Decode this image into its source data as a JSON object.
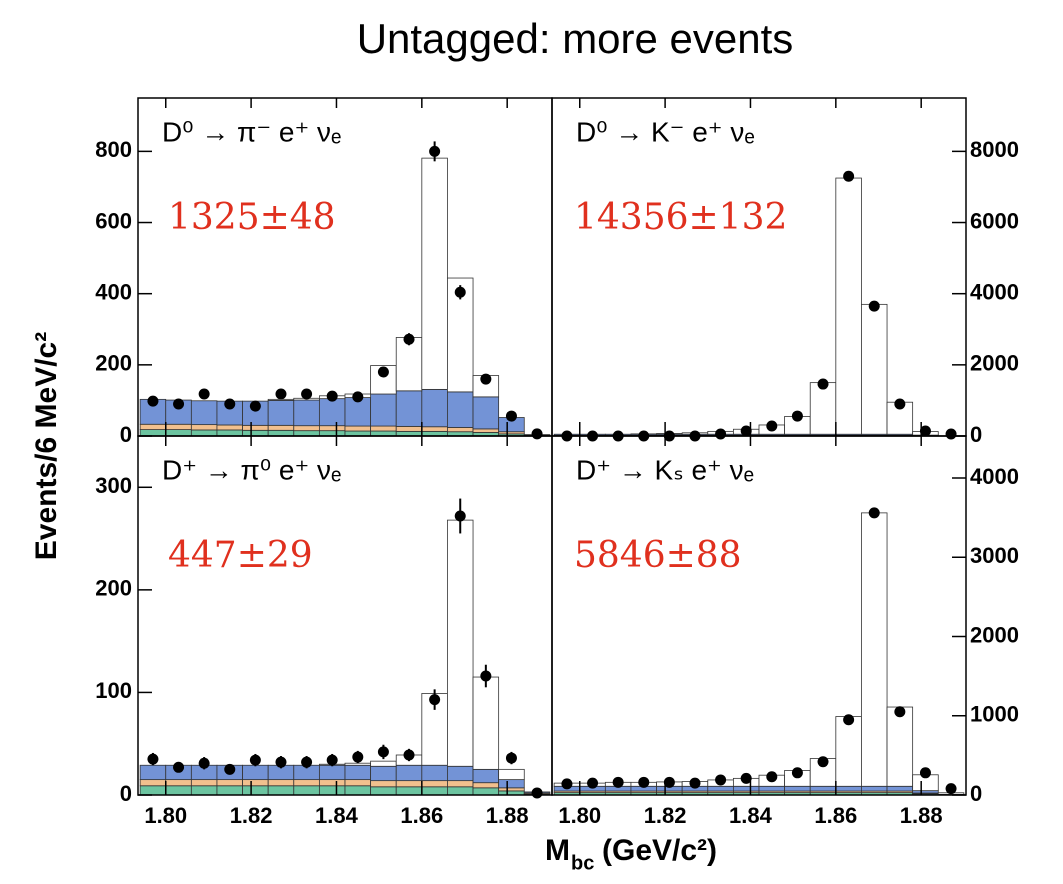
{
  "title": "Untagged: more events",
  "ylabel": "Events/6 MeV/c²",
  "xlabel": {
    "symbol": "M",
    "subscript": "bc",
    "unit": "(GeV/c²)"
  },
  "chart_data": [
    {
      "type": "histogram",
      "title": "D⁰ → π⁻ e⁺ νₑ",
      "annotation": "1325±48",
      "annotation_color": "#e0301e",
      "bins": [
        1.794,
        1.8,
        1.806,
        1.812,
        1.818,
        1.824,
        1.83,
        1.836,
        1.842,
        1.848,
        1.854,
        1.86,
        1.866,
        1.872,
        1.878,
        1.884,
        1.89
      ],
      "xlim": [
        1.7935,
        1.8905
      ],
      "xticks": [
        1.8,
        1.82,
        1.84,
        1.86,
        1.88
      ],
      "xtick_labels": false,
      "ylim": [
        0,
        950
      ],
      "yticks": [
        0,
        200,
        400,
        600,
        800
      ],
      "yaxis": "left",
      "series": [
        {
          "name": "green",
          "color": "#6cc4a0",
          "values": [
            18,
            18,
            17,
            17,
            16,
            16,
            15,
            15,
            14,
            14,
            13,
            13,
            12,
            10,
            6,
            1
          ]
        },
        {
          "name": "orange",
          "color": "#f2c08e",
          "values": [
            15,
            15,
            15,
            14,
            14,
            14,
            14,
            14,
            14,
            14,
            14,
            13,
            12,
            10,
            6,
            1
          ]
        },
        {
          "name": "blue",
          "color": "#7393d6",
          "values": [
            70,
            68,
            67,
            67,
            68,
            70,
            72,
            76,
            80,
            90,
            100,
            105,
            100,
            90,
            40,
            2
          ]
        },
        {
          "name": "signal",
          "color": "#ffffff",
          "values": [
            0,
            0,
            0,
            0,
            0,
            3,
            5,
            8,
            10,
            80,
            150,
            650,
            320,
            60,
            0,
            0
          ]
        }
      ],
      "points": {
        "color": "#000000",
        "values": [
          98,
          90,
          118,
          90,
          84,
          118,
          118,
          112,
          110,
          180,
          272,
          800,
          404,
          160,
          56,
          6
        ],
        "errors": [
          10,
          10,
          11,
          10,
          10,
          11,
          11,
          11,
          11,
          14,
          17,
          28,
          20,
          13,
          8,
          3
        ]
      }
    },
    {
      "type": "histogram",
      "title": "D⁰ → K⁻ e⁺ νₑ",
      "annotation": "14356±132",
      "annotation_color": "#e0301e",
      "bins": [
        1.794,
        1.8,
        1.806,
        1.812,
        1.818,
        1.824,
        1.83,
        1.836,
        1.842,
        1.848,
        1.854,
        1.86,
        1.866,
        1.872,
        1.878,
        1.884,
        1.89
      ],
      "xlim": [
        1.7935,
        1.8905
      ],
      "xticks": [
        1.8,
        1.82,
        1.84,
        1.86,
        1.88
      ],
      "xtick_labels": false,
      "ylim": [
        0,
        9500
      ],
      "yticks": [
        0,
        2000,
        4000,
        6000,
        8000
      ],
      "yaxis": "right",
      "series": [
        {
          "name": "green",
          "color": "#6cc4a0",
          "values": [
            10,
            10,
            10,
            10,
            10,
            10,
            10,
            10,
            10,
            10,
            10,
            10,
            10,
            10,
            5,
            1
          ]
        },
        {
          "name": "orange",
          "color": "#f2c08e",
          "values": [
            10,
            10,
            10,
            10,
            10,
            10,
            10,
            10,
            10,
            10,
            10,
            10,
            10,
            10,
            5,
            1
          ]
        },
        {
          "name": "blue",
          "color": "#7393d6",
          "values": [
            30,
            30,
            30,
            30,
            30,
            30,
            30,
            30,
            30,
            30,
            30,
            30,
            30,
            30,
            15,
            2
          ]
        },
        {
          "name": "signal",
          "color": "#ffffff",
          "values": [
            0,
            0,
            0,
            10,
            20,
            40,
            80,
            140,
            260,
            500,
            1450,
            7200,
            3650,
            900,
            100,
            0
          ]
        }
      ],
      "points": {
        "color": "#000000",
        "values": [
          0,
          0,
          0,
          0,
          0,
          0,
          56,
          140,
          280,
          560,
          1460,
          7300,
          3650,
          900,
          140,
          56
        ],
        "errors": [
          20,
          20,
          20,
          20,
          20,
          20,
          30,
          40,
          50,
          60,
          80,
          90,
          60,
          40,
          30,
          20
        ]
      }
    },
    {
      "type": "histogram",
      "title": "D⁺ → π⁰ e⁺ νₑ",
      "annotation": "447±29",
      "annotation_color": "#e0301e",
      "bins": [
        1.794,
        1.8,
        1.806,
        1.812,
        1.818,
        1.824,
        1.83,
        1.836,
        1.842,
        1.848,
        1.854,
        1.86,
        1.866,
        1.872,
        1.878,
        1.884,
        1.89
      ],
      "xlim": [
        1.7935,
        1.8905
      ],
      "xticks": [
        {
          "value": 1.8,
          "label": "1.80"
        },
        1.82,
        1.84,
        1.86,
        1.88
      ],
      "xtick_labels": true,
      "ylim": [
        0,
        350
      ],
      "yticks": [
        0,
        100,
        200,
        300
      ],
      "yaxis": "left",
      "series": [
        {
          "name": "green",
          "color": "#6cc4a0",
          "values": [
            9,
            9,
            9,
            9,
            9,
            9,
            9,
            9,
            9,
            8,
            8,
            8,
            8,
            7,
            4,
            1
          ]
        },
        {
          "name": "orange",
          "color": "#f2c08e",
          "values": [
            6,
            6,
            6,
            6,
            6,
            6,
            6,
            6,
            6,
            6,
            6,
            6,
            6,
            5,
            3,
            1
          ]
        },
        {
          "name": "blue",
          "color": "#7393d6",
          "values": [
            14,
            14,
            14,
            14,
            14,
            14,
            14,
            14,
            14,
            14,
            15,
            15,
            14,
            13,
            8,
            1
          ]
        },
        {
          "name": "signal",
          "color": "#ffffff",
          "values": [
            0,
            0,
            0,
            0,
            0,
            0,
            0,
            1,
            2,
            5,
            10,
            70,
            240,
            90,
            10,
            0
          ]
        }
      ],
      "points": {
        "color": "#000000",
        "values": [
          35,
          27,
          31,
          25,
          34,
          32,
          32,
          34,
          37,
          42,
          39,
          93,
          272,
          116,
          36,
          2
        ],
        "errors": [
          6,
          5,
          6,
          5,
          6,
          6,
          6,
          6,
          6,
          7,
          6,
          10,
          17,
          11,
          6,
          2
        ]
      }
    },
    {
      "type": "histogram",
      "title": "D⁺ → Kₛ e⁺ νₑ",
      "annotation": "5846±88",
      "annotation_color": "#e0301e",
      "bins": [
        1.794,
        1.8,
        1.806,
        1.812,
        1.818,
        1.824,
        1.83,
        1.836,
        1.842,
        1.848,
        1.854,
        1.86,
        1.866,
        1.872,
        1.878,
        1.884,
        1.89
      ],
      "xlim": [
        1.7935,
        1.8905
      ],
      "xticks": [
        {
          "value": 1.8,
          "label": "1.80"
        },
        1.82,
        1.84,
        1.86,
        1.88
      ],
      "xtick_labels": true,
      "ylim": [
        0,
        4530
      ],
      "yticks": [
        0,
        1000,
        2000,
        3000,
        4000
      ],
      "yaxis": "right",
      "series": [
        {
          "name": "green",
          "color": "#6cc4a0",
          "values": [
            30,
            30,
            30,
            30,
            30,
            30,
            30,
            30,
            30,
            30,
            30,
            30,
            30,
            30,
            15,
            2
          ]
        },
        {
          "name": "orange",
          "color": "#f2c08e",
          "values": [
            20,
            20,
            20,
            20,
            20,
            20,
            20,
            20,
            20,
            20,
            20,
            20,
            20,
            20,
            10,
            2
          ]
        },
        {
          "name": "blue",
          "color": "#7393d6",
          "values": [
            60,
            60,
            60,
            60,
            60,
            60,
            60,
            60,
            60,
            60,
            60,
            60,
            60,
            60,
            30,
            4
          ]
        },
        {
          "name": "signal",
          "color": "#ffffff",
          "values": [
            40,
            40,
            50,
            50,
            55,
            60,
            80,
            100,
            140,
            200,
            350,
            880,
            3450,
            1000,
            200,
            20
          ]
        }
      ],
      "points": {
        "color": "#000000",
        "values": [
          140,
          150,
          160,
          160,
          160,
          150,
          190,
          210,
          230,
          280,
          420,
          950,
          3560,
          1050,
          280,
          80
        ],
        "errors": [
          12,
          12,
          13,
          13,
          13,
          12,
          14,
          15,
          15,
          17,
          20,
          31,
          60,
          32,
          17,
          9
        ]
      }
    }
  ]
}
